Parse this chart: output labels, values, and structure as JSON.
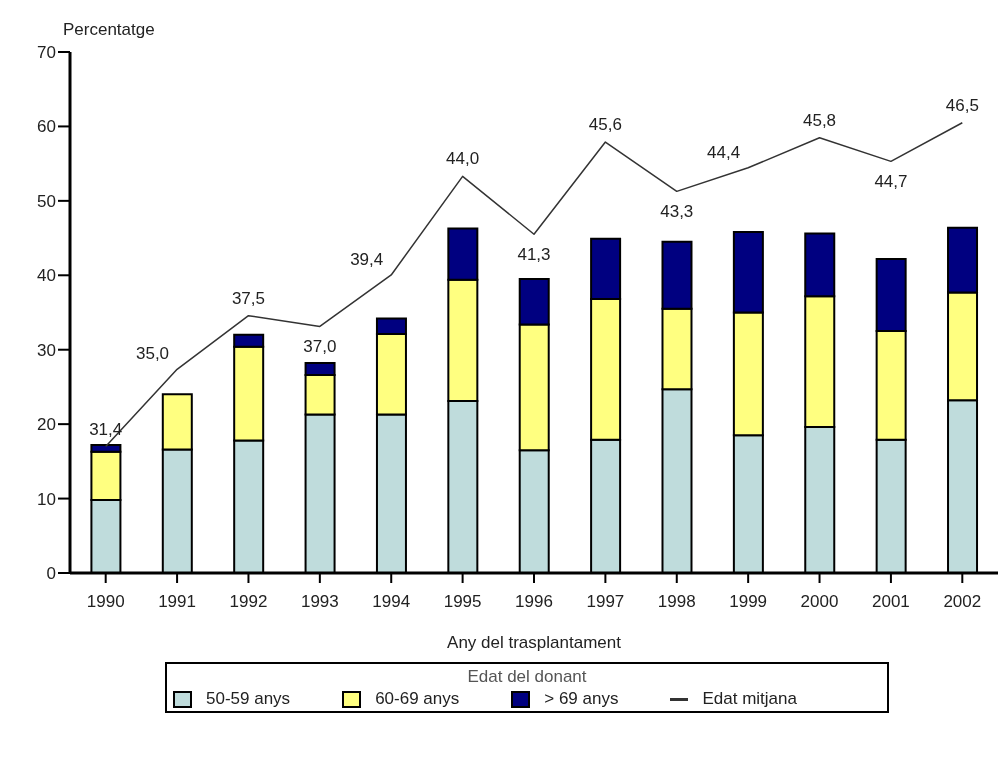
{
  "chart_data": {
    "type": "bar",
    "stacked": true,
    "ylabel": "Percentatge",
    "xlabel": "Any del trasplantament",
    "legend_title": "Edat del donant",
    "legend": "bottom",
    "grid": false,
    "categories": [
      "1990",
      "1991",
      "1992",
      "1993",
      "1994",
      "1995",
      "1996",
      "1997",
      "1998",
      "1999",
      "2000",
      "2001",
      "2002"
    ],
    "ylim": [
      0,
      70
    ],
    "yticks": [
      0,
      10,
      20,
      30,
      40,
      50,
      60,
      70
    ],
    "y2lim": [
      25.5,
      49.8
    ],
    "series": [
      {
        "name": "50-59 anys",
        "color": "#bfdcdc",
        "values": [
          9.8,
          16.6,
          17.8,
          21.3,
          21.3,
          23.1,
          16.5,
          17.9,
          24.7,
          18.5,
          19.6,
          17.9,
          23.2
        ]
      },
      {
        "name": "60-69 anys",
        "color": "#ffff80",
        "values": [
          6.5,
          7.4,
          12.6,
          5.3,
          10.8,
          16.3,
          16.9,
          18.9,
          10.8,
          16.5,
          17.6,
          14.6,
          14.5
        ]
      },
      {
        "name": "> 69 anys",
        "color": "#000080",
        "values": [
          0.9,
          0,
          1.6,
          1.6,
          2.1,
          6.9,
          6.1,
          8.1,
          9.0,
          10.8,
          8.4,
          9.7,
          8.7
        ]
      },
      {
        "name": "Edat mitjana",
        "type": "line",
        "axis": "y2",
        "color": "#333333",
        "values": [
          31.4,
          35.0,
          37.5,
          37.0,
          39.4,
          44.0,
          41.3,
          45.6,
          43.3,
          44.4,
          45.8,
          44.7,
          46.5
        ],
        "value_labels": [
          "31,4",
          "35,0",
          "37,5",
          "37,0",
          "39,4",
          "44,0",
          "41,3",
          "45,6",
          "43,3",
          "44,4",
          "45,8",
          "44,7",
          "46,5"
        ]
      }
    ]
  }
}
